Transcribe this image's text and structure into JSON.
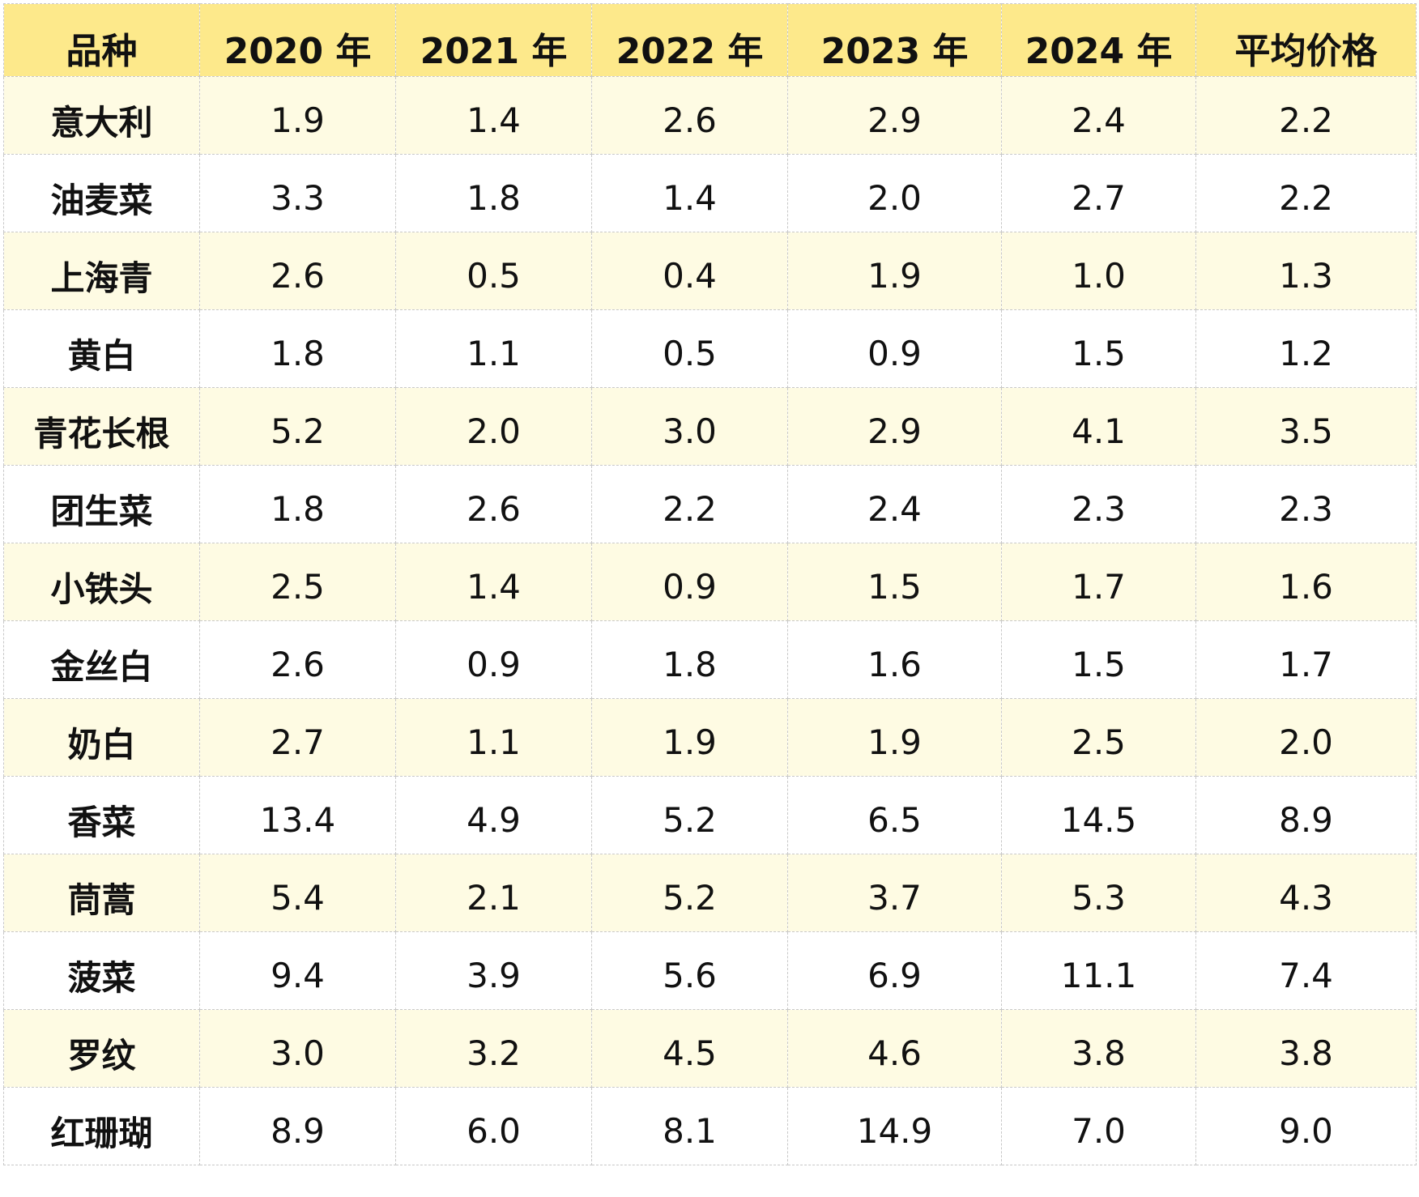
{
  "table": {
    "headers": [
      "品种",
      "2020 年",
      "2021 年",
      "2022 年",
      "2023 年",
      "2024 年",
      "平均价格"
    ],
    "rows": [
      {
        "name": "意大利",
        "values": [
          "1.9",
          "1.4",
          "2.6",
          "2.9",
          "2.4",
          "2.2"
        ],
        "colors": [
          "black",
          "green",
          "black",
          "red",
          "black",
          "black"
        ]
      },
      {
        "name": "油麦菜",
        "values": [
          "3.3",
          "1.8",
          "1.4",
          "2.0",
          "2.7",
          "2.2"
        ],
        "colors": [
          "red",
          "black",
          "green",
          "black",
          "black",
          "black"
        ]
      },
      {
        "name": "上海青",
        "values": [
          "2.6",
          "0.5",
          "0.4",
          "1.9",
          "1.0",
          "1.3"
        ],
        "colors": [
          "red",
          "black",
          "green",
          "black",
          "black",
          "black"
        ]
      },
      {
        "name": "黄白",
        "values": [
          "1.8",
          "1.1",
          "0.5",
          "0.9",
          "1.5",
          "1.2"
        ],
        "colors": [
          "red",
          "black",
          "green",
          "black",
          "black",
          "black"
        ]
      },
      {
        "name": "青花长根",
        "values": [
          "5.2",
          "2.0",
          "3.0",
          "2.9",
          "4.1",
          "3.5"
        ],
        "colors": [
          "red",
          "green",
          "black",
          "black",
          "black",
          "black"
        ]
      },
      {
        "name": "团生菜",
        "values": [
          "1.8",
          "2.6",
          "2.2",
          "2.4",
          "2.3",
          "2.3"
        ],
        "colors": [
          "green",
          "red",
          "black",
          "black",
          "black",
          "black"
        ]
      },
      {
        "name": "小铁头",
        "values": [
          "2.5",
          "1.4",
          "0.9",
          "1.5",
          "1.7",
          "1.6"
        ],
        "colors": [
          "red",
          "black",
          "green",
          "black",
          "black",
          "black"
        ]
      },
      {
        "name": "金丝白",
        "values": [
          "2.6",
          "0.9",
          "1.8",
          "1.6",
          "1.5",
          "1.7"
        ],
        "colors": [
          "red",
          "green",
          "black",
          "black",
          "black",
          "black"
        ]
      },
      {
        "name": "奶白",
        "values": [
          "2.7",
          "1.1",
          "1.9",
          "1.9",
          "2.5",
          "2.0"
        ],
        "colors": [
          "red",
          "green",
          "black",
          "black",
          "black",
          "black"
        ]
      },
      {
        "name": "香菜",
        "values": [
          "13.4",
          "4.9",
          "5.2",
          "6.5",
          "14.5",
          "8.9"
        ],
        "colors": [
          "black",
          "green",
          "black",
          "black",
          "red",
          "black"
        ]
      },
      {
        "name": "茼蒿",
        "values": [
          "5.4",
          "2.1",
          "5.2",
          "3.7",
          "5.3",
          "4.3"
        ],
        "colors": [
          "red",
          "green",
          "black",
          "black",
          "black",
          "black"
        ]
      },
      {
        "name": "菠菜",
        "values": [
          "9.4",
          "3.9",
          "5.6",
          "6.9",
          "11.1",
          "7.4"
        ],
        "colors": [
          "black",
          "green",
          "black",
          "black",
          "red",
          "black"
        ]
      },
      {
        "name": "罗纹",
        "values": [
          "3.0",
          "3.2",
          "4.5",
          "4.6",
          "3.8",
          "3.8"
        ],
        "colors": [
          "green",
          "black",
          "black",
          "red",
          "black",
          "black"
        ]
      },
      {
        "name": "红珊瑚",
        "values": [
          "8.9",
          "6.0",
          "8.1",
          "14.9",
          "7.0",
          "9.0"
        ],
        "colors": [
          "black",
          "green",
          "black",
          "red",
          "black",
          "black"
        ]
      }
    ]
  },
  "colors": {
    "header_bg": "#fde98b",
    "alt_row_bg": "#fefbe3",
    "high": "#e8161d",
    "low": "#2fa12a",
    "text": "#111111"
  }
}
